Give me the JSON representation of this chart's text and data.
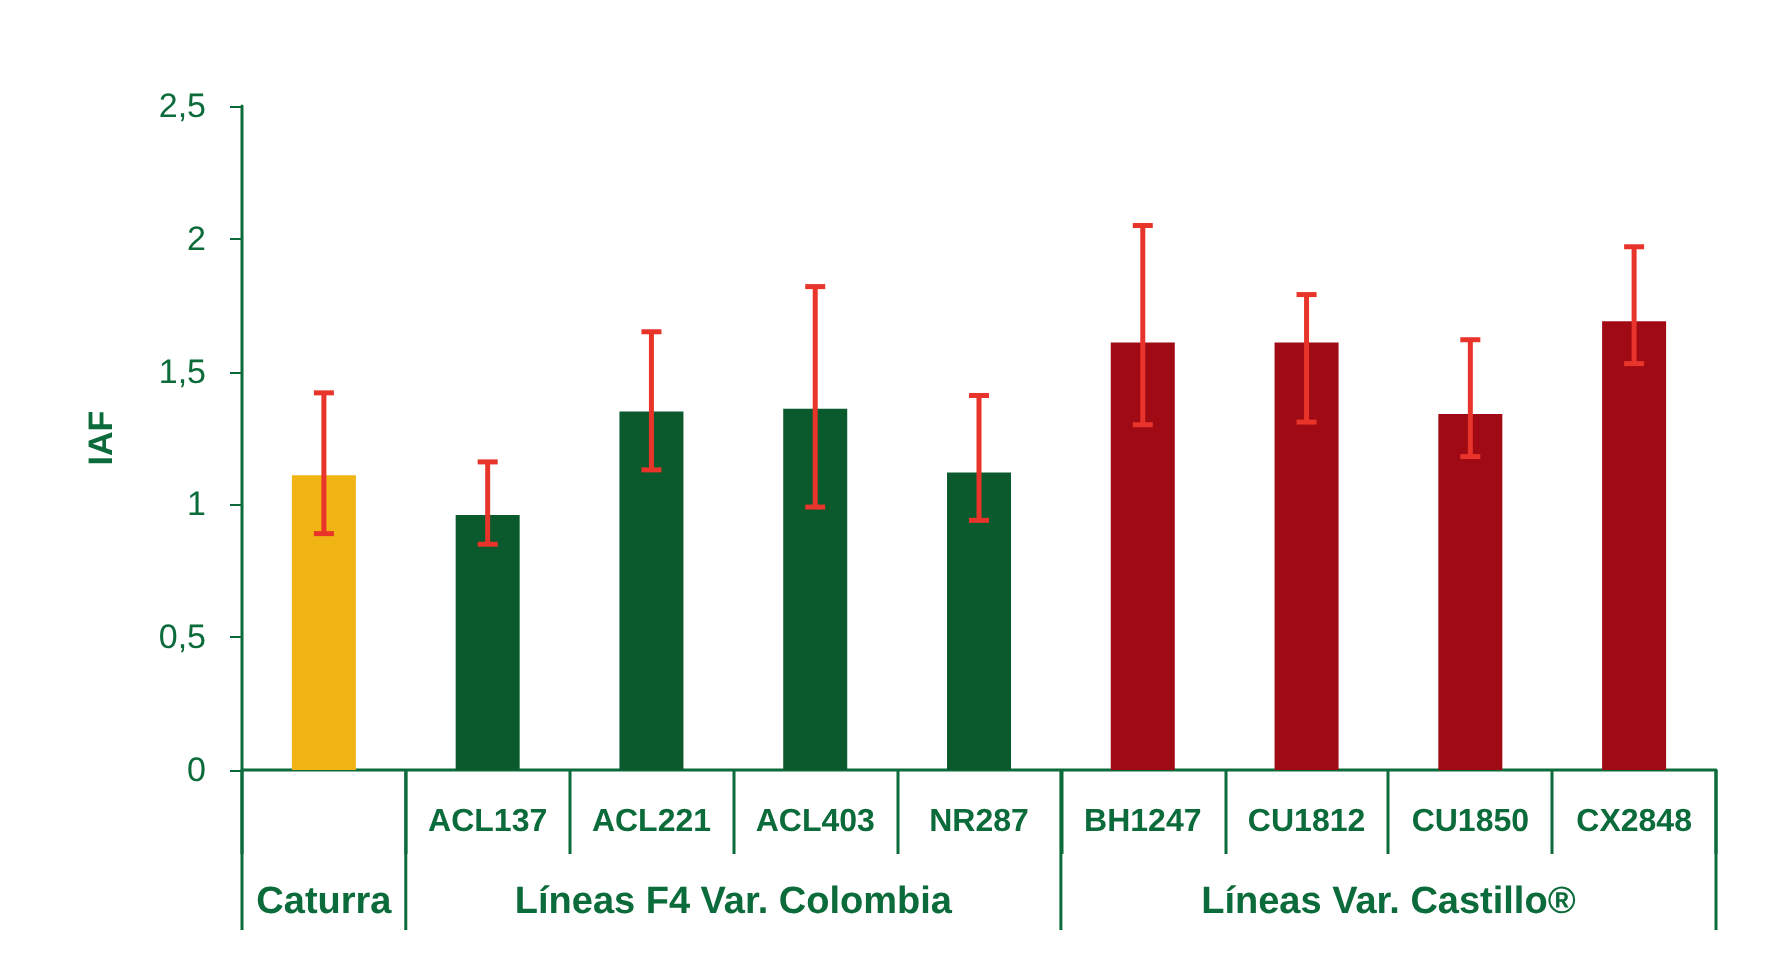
{
  "chart_data": {
    "type": "bar",
    "ylabel": "IAF",
    "categories": [
      null,
      "ACL137",
      "ACL221",
      "ACL403",
      "NR287",
      "BH1247",
      "CU1812",
      "CU1850",
      "CX2848"
    ],
    "values": [
      1.11,
      0.96,
      1.35,
      1.36,
      1.12,
      1.61,
      1.61,
      1.34,
      1.69
    ],
    "colors": [
      "#f0b414",
      "#0b5a2e",
      "#0b5a2e",
      "#0b5a2e",
      "#0b5a2e",
      "#a00a14",
      "#a00a14",
      "#a00a14",
      "#a00a14"
    ],
    "errors": [
      [
        0.89,
        1.42
      ],
      [
        0.85,
        1.16
      ],
      [
        1.13,
        1.65
      ],
      [
        0.99,
        1.82
      ],
      [
        0.94,
        1.41
      ],
      [
        1.3,
        2.05
      ],
      [
        1.31,
        1.79
      ],
      [
        1.18,
        1.62
      ],
      [
        1.53,
        1.97
      ]
    ],
    "ylim": [
      0,
      2.5
    ],
    "yticks": [
      0,
      {
        "value": 0.5,
        "label": "0,5"
      },
      1,
      {
        "value": 1.5,
        "label": "1,5"
      },
      2,
      {
        "value": 2.5,
        "label": "2,5"
      }
    ],
    "annotations": [
      "Caturra",
      "Líneas F4 Var. Colombia",
      "Líneas Var. Castillo®"
    ],
    "grid": false
  }
}
